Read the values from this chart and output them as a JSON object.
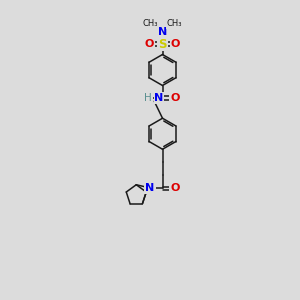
{
  "bg": "#dcdcdc",
  "bc": "#1a1a1a",
  "Nc": "#0000ee",
  "Oc": "#dd0000",
  "Sc": "#cccc00",
  "Hc": "#5a9090",
  "lw": 1.1,
  "fs": 7.5,
  "ring_r": 0.62,
  "xlim": [
    0,
    10
  ],
  "ylim": [
    0,
    12
  ]
}
